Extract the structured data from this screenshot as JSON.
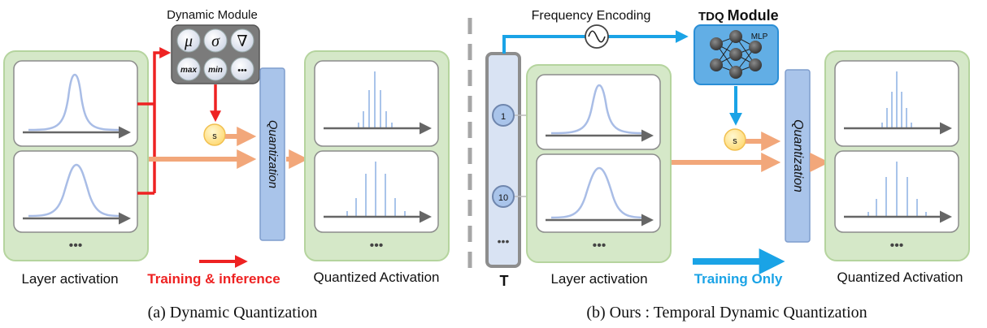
{
  "left": {
    "dynamic_module": {
      "title": "Dynamic Module",
      "symbols": [
        "μ",
        "σ",
        "∇",
        "max",
        "min",
        "•••"
      ]
    },
    "scale_label": "s",
    "quantization_label": "Quantization",
    "layer_label": "Layer activation",
    "quantized_label": "Quantized Activation",
    "legend_label": "Training & inference",
    "ellipsis": "•••",
    "caption": "(a) Dynamic Quantization"
  },
  "right": {
    "frequency_label": "Frequency Encoding",
    "tdq_prefix": "TDQ",
    "tdq_suffix": "Module",
    "mlp_label": "MLP",
    "t_label": "T",
    "t_steps": [
      "1",
      "10"
    ],
    "scale_label": "s",
    "quantization_label": "Quantization",
    "layer_label": "Layer activation",
    "quantized_label": "Quantized Activation",
    "legend_label": "Training Only",
    "ellipsis": "•••",
    "caption": "(b) Ours : Temporal Dynamic Quantization"
  },
  "colors": {
    "red": "#ee2222",
    "blue": "#1aa3e6",
    "orange": "#f2a77a",
    "green_panel": "#d5e8c8",
    "green_border": "#b5d49e",
    "quant_bar": "#a9c4ea",
    "curve": "#a9bde6"
  }
}
